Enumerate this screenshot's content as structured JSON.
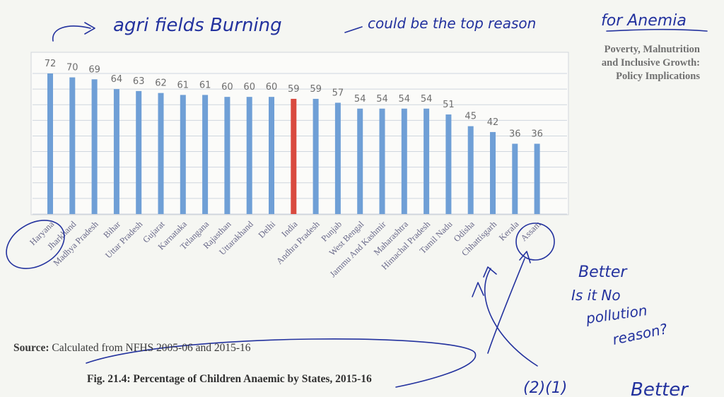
{
  "book_header": {
    "line1": "Poverty, Malnutrition",
    "line2": "and Inclusive Growth:",
    "line3": "Policy Implications"
  },
  "source": {
    "label": "Source:",
    "text": "Calculated from NFHS 2005-06 and 2015-16"
  },
  "caption": "Fig. 21.4: Percentage of Children Anaemic by States, 2015-16",
  "chart_data": {
    "type": "bar",
    "title": "",
    "xlabel": "",
    "ylabel": "",
    "ylim": [
      0,
      72
    ],
    "grid": true,
    "categories": [
      "Haryana",
      "Jharkhand",
      "Madhya Pradesh",
      "Bihar",
      "Uttar Pradesh",
      "Gujarat",
      "Karnataka",
      "Telangana",
      "Rajasthan",
      "Uttarakhand",
      "Delhi",
      "India",
      "Andhra Pradesh",
      "Punjab",
      "West Bengal",
      "Jammu And Kashmir",
      "Maharashtra",
      "Himachal Pradesh",
      "Tamil Nadu",
      "Odisha",
      "Chhattisgarh",
      "Kerala",
      "Assam"
    ],
    "values": [
      72,
      70,
      69,
      64,
      63,
      62,
      61,
      61,
      60,
      60,
      60,
      59,
      59,
      57,
      54,
      54,
      54,
      54,
      51,
      45,
      42,
      36,
      36
    ],
    "highlight_category": "India",
    "colors": {
      "bar": "#6f9fd6",
      "highlight": "#d94a3f",
      "grid": "#cfd6de",
      "value_label": "#6e6e6e",
      "category_label": "#6a6a8a"
    }
  },
  "annotations": {
    "top_note": "agri fields Burning",
    "top_note_2": "could be the top reason",
    "top_note_3": "for Anemia",
    "side_note_1": "Better",
    "side_note_2": "Is it No",
    "side_note_3": "pollution",
    "side_note_4": "reason?",
    "numbers": "(2)(1)",
    "bottom_note": "Better"
  }
}
